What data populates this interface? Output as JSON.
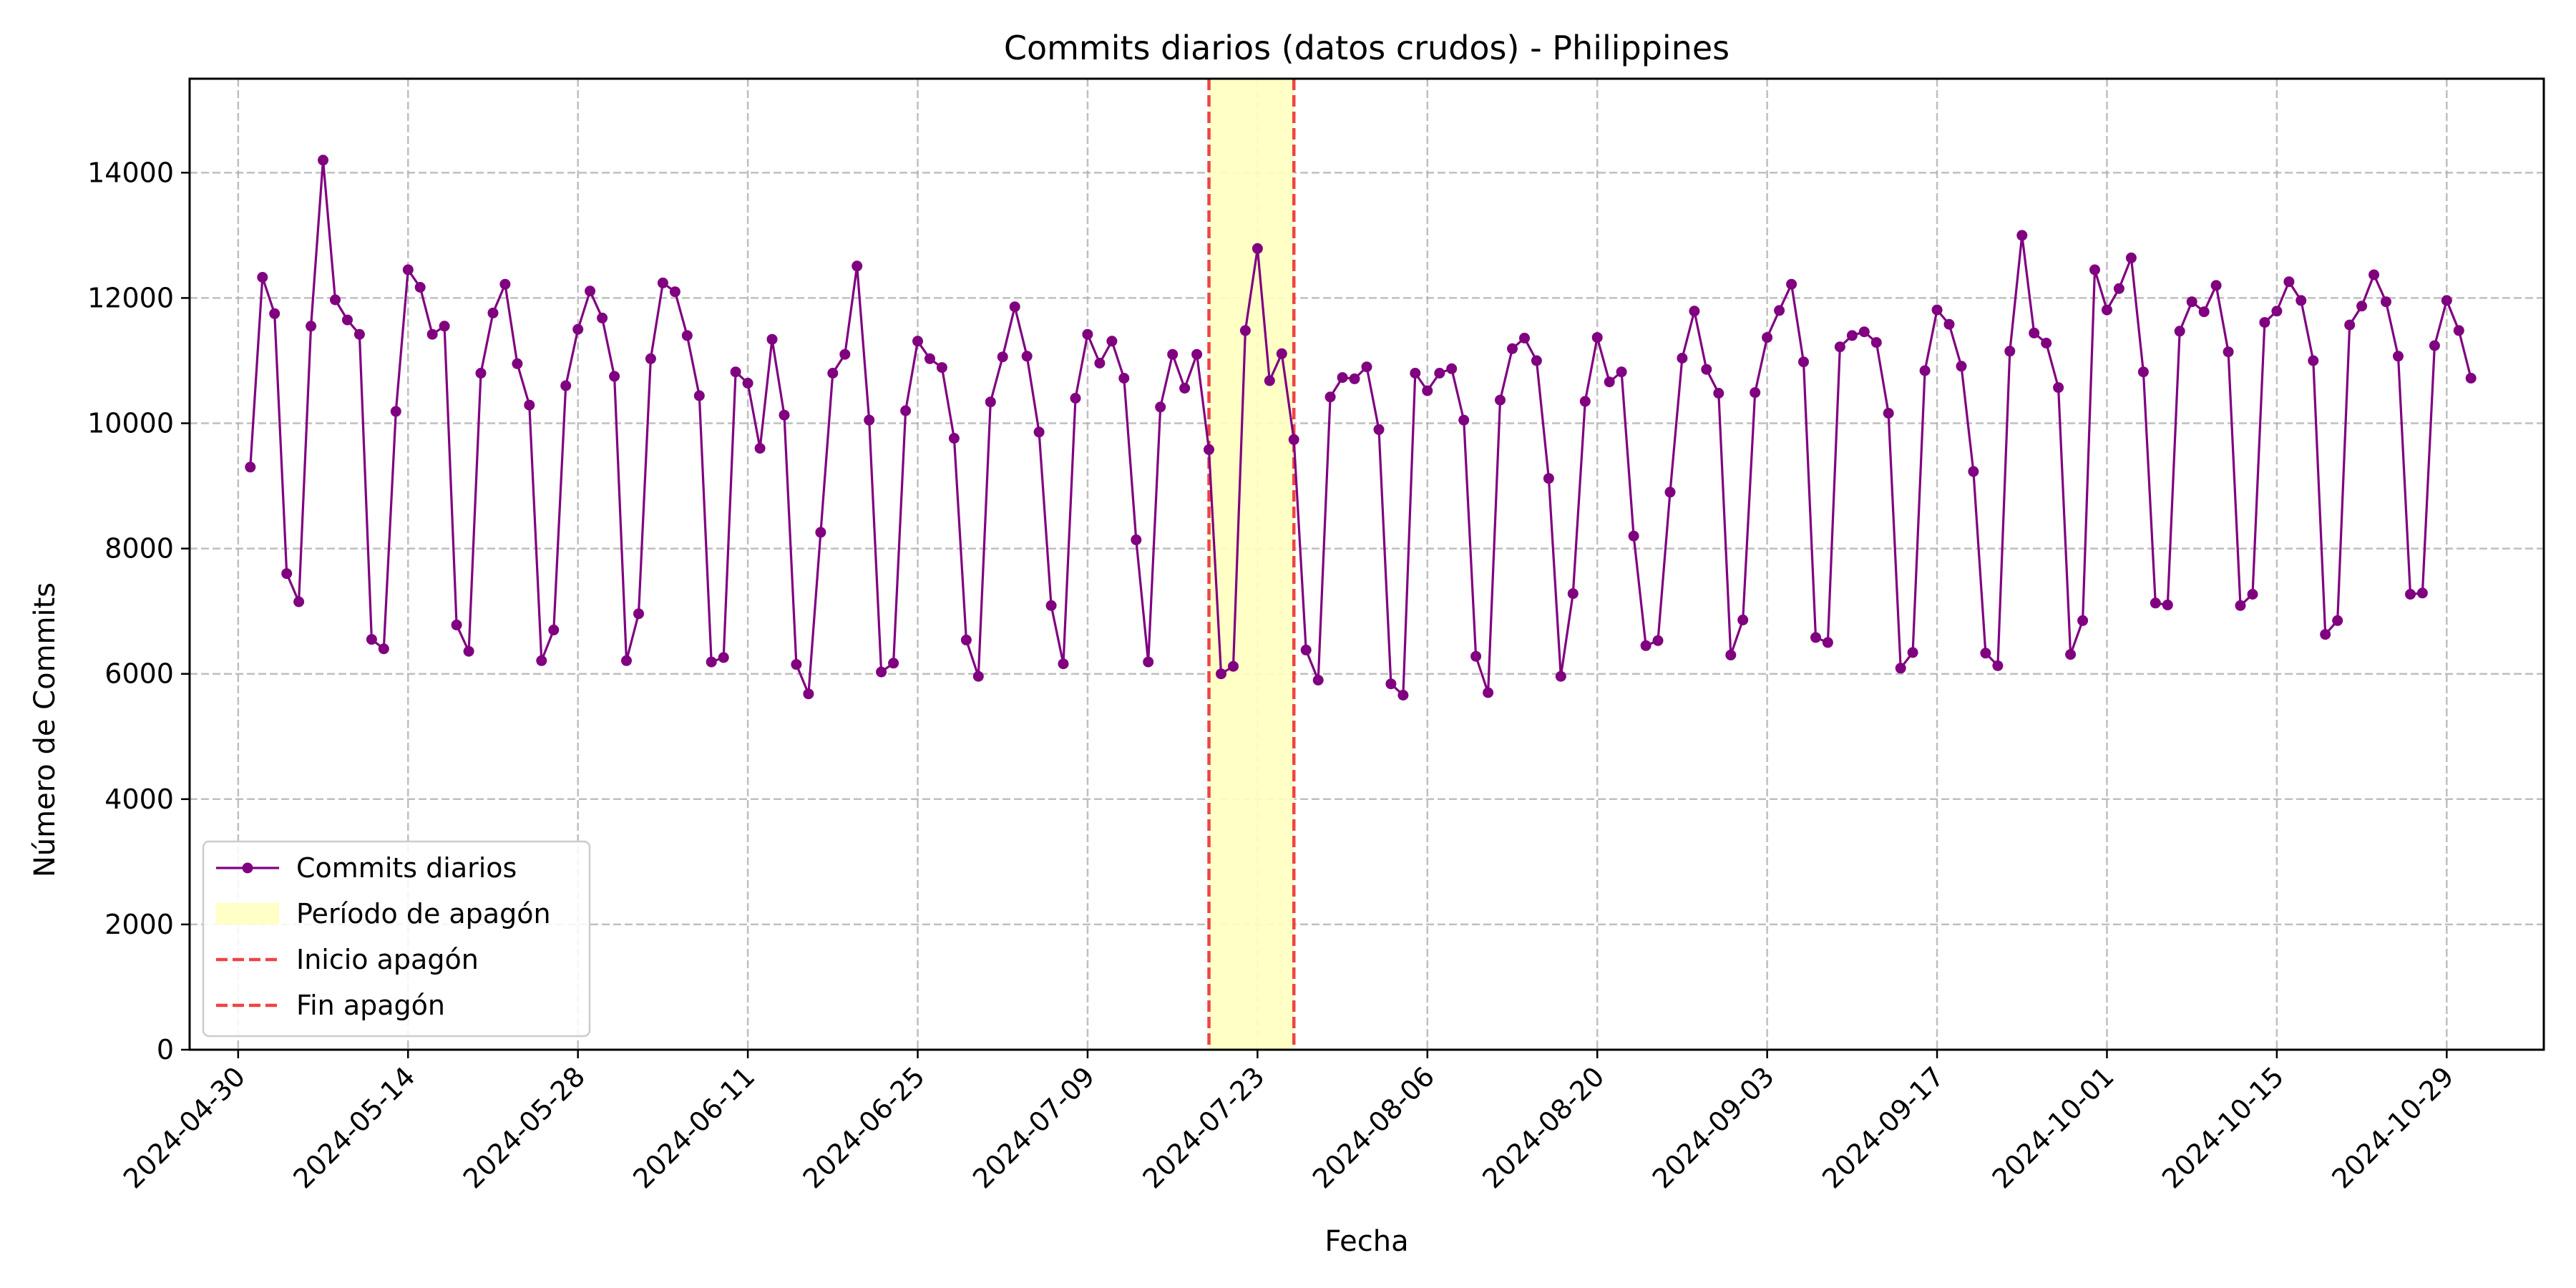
{
  "chart_data": {
    "type": "line",
    "title": "Commits diarios (datos crudos) - Philippines",
    "xlabel": "Fecha",
    "ylabel": "Número de Commits",
    "x_start_date": "2024-05-01",
    "x_range": [
      "2024-04-26",
      "2024-11-06"
    ],
    "ylim": [
      0,
      15500
    ],
    "x_ticks": [
      "2024-04-30",
      "2024-05-14",
      "2024-05-28",
      "2024-06-11",
      "2024-06-25",
      "2024-07-09",
      "2024-07-23",
      "2024-08-06",
      "2024-08-20",
      "2024-09-03",
      "2024-09-17",
      "2024-10-01",
      "2024-10-15",
      "2024-10-29"
    ],
    "y_ticks": [
      0,
      2000,
      4000,
      6000,
      8000,
      10000,
      12000,
      14000
    ],
    "grid": true,
    "legend_position": "lower-left",
    "series": [
      {
        "name": "Commits diarios",
        "color": "#800080",
        "values": [
          9300,
          12330,
          11750,
          7600,
          7150,
          11550,
          14200,
          11970,
          11650,
          11420,
          6550,
          6400,
          10190,
          12450,
          12170,
          11420,
          11550,
          6780,
          6360,
          10800,
          11760,
          12220,
          10950,
          10290,
          6210,
          6700,
          10600,
          11500,
          12110,
          11680,
          10750,
          6210,
          6960,
          11030,
          12240,
          12100,
          11400,
          10440,
          6190,
          6260,
          10820,
          10640,
          9600,
          11340,
          10130,
          6150,
          5680,
          8260,
          10800,
          11100,
          12510,
          10050,
          6030,
          6170,
          10200,
          11310,
          11030,
          10890,
          9760,
          6540,
          5960,
          10340,
          11060,
          11860,
          11070,
          9860,
          7090,
          6160,
          10400,
          11420,
          10960,
          11310,
          10720,
          8140,
          6190,
          10260,
          11100,
          10560,
          11100,
          9580,
          6000,
          6120,
          11480,
          12790,
          10680,
          11110,
          9740,
          6380,
          5900,
          10420,
          10730,
          10710,
          10900,
          9900,
          5840,
          5660,
          10800,
          10520,
          10800,
          10870,
          10050,
          6280,
          5700,
          10370,
          11190,
          11360,
          11000,
          9120,
          5960,
          7280,
          10350,
          11370,
          10660,
          10820,
          8200,
          6450,
          6530,
          8900,
          11040,
          11790,
          10860,
          10480,
          6300,
          6860,
          10490,
          11370,
          11800,
          12220,
          10980,
          6580,
          6500,
          11220,
          11400,
          11460,
          11290,
          10160,
          6090,
          6340,
          10840,
          11810,
          11580,
          10910,
          9230,
          6330,
          6130,
          11150,
          13000,
          11440,
          11280,
          10570,
          6310,
          6850,
          12450,
          11810,
          12150,
          12640,
          10820,
          7130,
          7100,
          11470,
          11940,
          11780,
          12200,
          11140,
          7090,
          7270,
          11610,
          11790,
          12260,
          11960,
          11000,
          6630,
          6850,
          11570,
          11870,
          12370,
          11940,
          11070,
          7270,
          7290,
          11240,
          11960,
          11480,
          10720
        ]
      }
    ],
    "blackout": {
      "start_date": "2024-07-19",
      "end_date": "2024-07-26",
      "fill_color": "#ffffc0",
      "line_color": "#ee4444"
    },
    "legend": {
      "entries": [
        {
          "label": "Commits diarios",
          "kind": "line-marker",
          "color": "#800080"
        },
        {
          "label": "Período de apagón",
          "kind": "patch",
          "color": "#ffffc0"
        },
        {
          "label": "Inicio apagón",
          "kind": "dashed",
          "color": "#ee4444"
        },
        {
          "label": "Fin apagón",
          "kind": "dashed",
          "color": "#ee4444"
        }
      ]
    }
  }
}
